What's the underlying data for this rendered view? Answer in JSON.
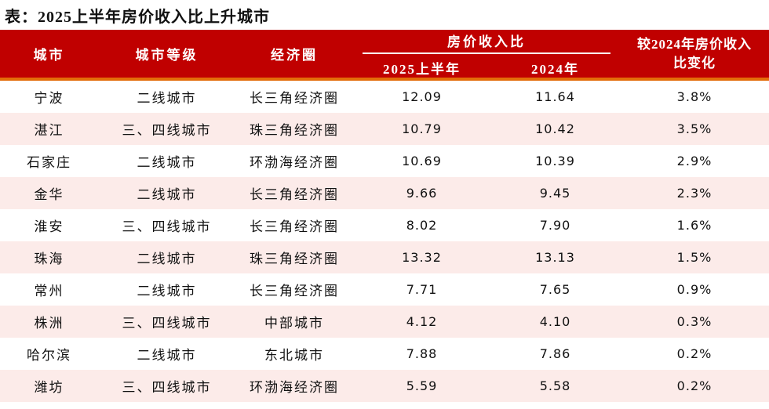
{
  "title": "表：2025上半年房价收入比上升城市",
  "colors": {
    "header_red": "#c00000",
    "accent_orange": "#e36c09",
    "row_pink": "#fcebe9",
    "header_text": "#ffffff",
    "body_text": "#111111"
  },
  "header": {
    "city": "城市",
    "tier": "城市等级",
    "region": "经济圈",
    "group": "房价收入比",
    "sub_2025": "2025上半年",
    "sub_2024": "2024年",
    "change": "较2024年房价收入比变化"
  },
  "rows": [
    {
      "city": "宁波",
      "tier": "二线城市",
      "region": "长三角经济圈",
      "v2025": "12.09",
      "v2024": "11.64",
      "change": "3.8%"
    },
    {
      "city": "湛江",
      "tier": "三、四线城市",
      "region": "珠三角经济圈",
      "v2025": "10.79",
      "v2024": "10.42",
      "change": "3.5%"
    },
    {
      "city": "石家庄",
      "tier": "二线城市",
      "region": "环渤海经济圈",
      "v2025": "10.69",
      "v2024": "10.39",
      "change": "2.9%"
    },
    {
      "city": "金华",
      "tier": "二线城市",
      "region": "长三角经济圈",
      "v2025": "9.66",
      "v2024": "9.45",
      "change": "2.3%"
    },
    {
      "city": "淮安",
      "tier": "三、四线城市",
      "region": "长三角经济圈",
      "v2025": "8.02",
      "v2024": "7.90",
      "change": "1.6%"
    },
    {
      "city": "珠海",
      "tier": "二线城市",
      "region": "珠三角经济圈",
      "v2025": "13.32",
      "v2024": "13.13",
      "change": "1.5%"
    },
    {
      "city": "常州",
      "tier": "二线城市",
      "region": "长三角经济圈",
      "v2025": "7.71",
      "v2024": "7.65",
      "change": "0.9%"
    },
    {
      "city": "株洲",
      "tier": "三、四线城市",
      "region": "中部城市",
      "v2025": "4.12",
      "v2024": "4.10",
      "change": "0.3%"
    },
    {
      "city": "哈尔滨",
      "tier": "二线城市",
      "region": "东北城市",
      "v2025": "7.88",
      "v2024": "7.86",
      "change": "0.2%"
    },
    {
      "city": "潍坊",
      "tier": "三、四线城市",
      "region": "环渤海经济圈",
      "v2025": "5.59",
      "v2024": "5.58",
      "change": "0.2%"
    }
  ],
  "chart_data": {
    "type": "table",
    "title": "表：2025上半年房价收入比上升城市",
    "columns": [
      "城市",
      "城市等级",
      "经济圈",
      "房价收入比 2025上半年",
      "房价收入比 2024年",
      "较2024年房价收入比变化"
    ],
    "rows": [
      [
        "宁波",
        "二线城市",
        "长三角经济圈",
        12.09,
        11.64,
        "3.8%"
      ],
      [
        "湛江",
        "三、四线城市",
        "珠三角经济圈",
        10.79,
        10.42,
        "3.5%"
      ],
      [
        "石家庄",
        "二线城市",
        "环渤海经济圈",
        10.69,
        10.39,
        "2.9%"
      ],
      [
        "金华",
        "二线城市",
        "长三角经济圈",
        9.66,
        9.45,
        "2.3%"
      ],
      [
        "淮安",
        "三、四线城市",
        "长三角经济圈",
        8.02,
        7.9,
        "1.6%"
      ],
      [
        "珠海",
        "二线城市",
        "珠三角经济圈",
        13.32,
        13.13,
        "1.5%"
      ],
      [
        "常州",
        "二线城市",
        "长三角经济圈",
        7.71,
        7.65,
        "0.9%"
      ],
      [
        "株洲",
        "三、四线城市",
        "中部城市",
        4.12,
        4.1,
        "0.3%"
      ],
      [
        "哈尔滨",
        "二线城市",
        "东北城市",
        7.88,
        7.86,
        "0.2%"
      ],
      [
        "潍坊",
        "三、四线城市",
        "环渤海经济圈",
        5.59,
        5.58,
        "0.2%"
      ]
    ]
  }
}
